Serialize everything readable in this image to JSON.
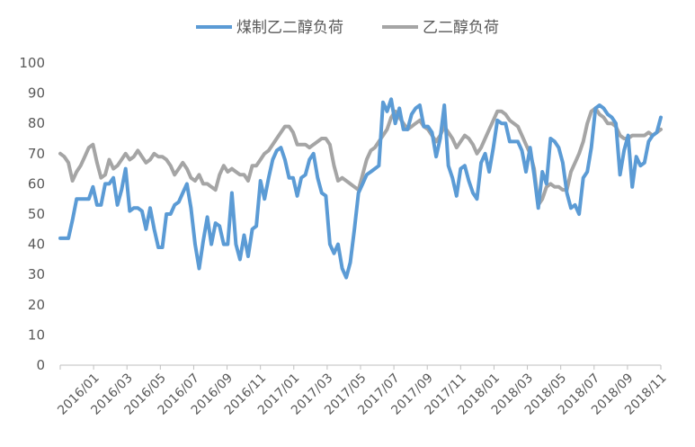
{
  "chart_data": {
    "type": "line",
    "x_tick_labels": [
      "2016/01",
      "2016/03",
      "2016/05",
      "2016/07",
      "2016/09",
      "2016/11",
      "2017/01",
      "2017/03",
      "2017/05",
      "2017/07",
      "2017/09",
      "2017/11",
      "2018/01",
      "2018/03",
      "2018/05",
      "2018/07",
      "2018/09",
      "2018/11"
    ],
    "y_tick_labels": [
      "0",
      "10",
      "20",
      "30",
      "40",
      "50",
      "60",
      "70",
      "80",
      "90",
      "100"
    ],
    "ylim": [
      0,
      100
    ],
    "grid": false,
    "legend_position": "top",
    "series": [
      {
        "name": "煤制乙二醇负荷",
        "color": "#5b9bd5",
        "values": [
          42,
          42,
          42,
          48,
          55,
          55,
          55,
          55,
          59,
          53,
          53,
          60,
          60,
          62,
          53,
          58,
          65,
          51,
          52,
          52,
          51,
          45,
          52,
          45,
          39,
          39,
          50,
          50,
          53,
          54,
          57,
          60,
          52,
          40,
          32,
          41,
          49,
          40,
          47,
          46,
          40,
          40,
          57,
          40,
          35,
          43,
          36,
          45,
          46,
          61,
          55,
          62,
          68,
          71,
          72,
          68,
          62,
          62,
          56,
          62,
          63,
          68,
          70,
          62,
          57,
          56,
          40,
          37,
          40,
          32,
          29,
          34,
          45,
          57,
          60,
          63,
          64,
          65,
          66,
          87,
          84,
          88,
          80,
          85,
          78,
          78,
          83,
          85,
          86,
          79,
          79,
          77,
          69,
          75,
          86,
          66,
          62,
          56,
          65,
          66,
          61,
          57,
          55,
          67,
          70,
          64,
          72,
          81,
          80,
          80,
          74,
          74,
          74,
          71,
          64,
          72,
          63,
          52,
          64,
          60,
          75,
          74,
          72,
          67,
          57,
          52,
          53,
          50,
          62,
          64,
          72,
          85,
          86,
          85,
          83,
          82,
          80,
          63,
          71,
          76,
          59,
          69,
          66,
          67,
          74,
          76,
          77,
          82
        ]
      },
      {
        "name": "乙二醇负荷",
        "color": "#a5a5a5",
        "values": [
          70,
          69,
          67,
          61,
          64,
          66,
          69,
          72,
          73,
          67,
          62,
          63,
          68,
          65,
          66,
          68,
          70,
          68,
          69,
          71,
          69,
          67,
          68,
          70,
          69,
          69,
          68,
          66,
          63,
          65,
          67,
          65,
          62,
          61,
          63,
          60,
          60,
          59,
          58,
          63,
          66,
          64,
          65,
          64,
          63,
          63,
          61,
          66,
          66,
          68,
          70,
          71,
          73,
          75,
          77,
          79,
          79,
          77,
          73,
          73,
          73,
          72,
          73,
          74,
          75,
          75,
          73,
          66,
          61,
          62,
          61,
          60,
          59,
          58,
          63,
          68,
          71,
          72,
          74,
          76,
          78,
          82,
          84,
          82,
          80,
          78,
          79,
          80,
          81,
          79,
          78,
          76,
          74,
          76,
          79,
          77,
          75,
          72,
          74,
          76,
          75,
          73,
          70,
          72,
          75,
          78,
          81,
          84,
          84,
          83,
          81,
          80,
          79,
          76,
          73,
          70,
          65,
          53,
          55,
          59,
          60,
          59,
          59,
          58,
          58,
          64,
          67,
          70,
          74,
          80,
          84,
          85,
          83,
          82,
          80,
          80,
          79,
          76,
          75,
          75,
          76,
          76,
          76,
          76,
          77,
          76,
          77,
          78
        ]
      }
    ]
  }
}
